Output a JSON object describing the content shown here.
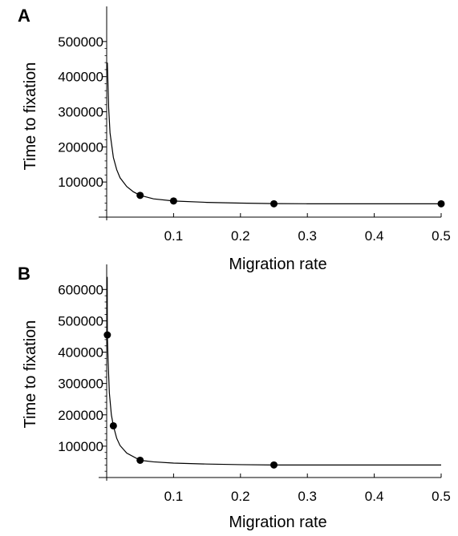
{
  "chart_data": [
    {
      "panel": "A",
      "type": "line",
      "xlabel": "Migration rate",
      "ylabel": "Time to fixation",
      "xlim": [
        0,
        0.5
      ],
      "ylim": [
        0,
        600000
      ],
      "xticks": [
        0.1,
        0.2,
        0.3,
        0.4,
        0.5
      ],
      "xtick_labels": [
        "0.1",
        "0.2",
        "0.3",
        "0.4",
        "0.5"
      ],
      "yticks": [
        100000,
        200000,
        300000,
        400000,
        500000
      ],
      "ytick_labels": [
        "100000",
        "200000",
        "300000",
        "400000",
        "500000"
      ],
      "grid": false,
      "points": {
        "x": [
          0.05,
          0.1,
          0.25,
          0.5
        ],
        "y": [
          62000,
          46000,
          38000,
          38000
        ]
      },
      "curve": {
        "x": [
          0.001,
          0.003,
          0.005,
          0.01,
          0.015,
          0.02,
          0.03,
          0.04,
          0.05,
          0.07,
          0.1,
          0.15,
          0.2,
          0.25,
          0.3,
          0.4,
          0.5
        ],
        "y": [
          440000,
          310000,
          240000,
          170000,
          135000,
          112000,
          87000,
          72000,
          62000,
          52000,
          46000,
          42000,
          40000,
          38500,
          38000,
          38000,
          38000
        ]
      }
    },
    {
      "panel": "B",
      "type": "line",
      "xlabel": "Migration rate",
      "ylabel": "Time to fixation",
      "xlim": [
        0,
        0.5
      ],
      "ylim": [
        0,
        680000
      ],
      "xticks": [
        0.1,
        0.2,
        0.3,
        0.4,
        0.5
      ],
      "xtick_labels": [
        "0.1",
        "0.2",
        "0.3",
        "0.4",
        "0.5"
      ],
      "yticks": [
        100000,
        200000,
        300000,
        400000,
        500000,
        600000
      ],
      "ytick_labels": [
        "100000",
        "200000",
        "300000",
        "400000",
        "500000",
        "600000"
      ],
      "grid": false,
      "points": {
        "x": [
          0.001,
          0.01,
          0.05,
          0.25
        ],
        "y": [
          455000,
          165000,
          55000,
          40000
        ]
      },
      "curve": {
        "x": [
          0.0008,
          0.001,
          0.002,
          0.004,
          0.007,
          0.01,
          0.015,
          0.02,
          0.03,
          0.05,
          0.07,
          0.1,
          0.15,
          0.2,
          0.25,
          0.3,
          0.4,
          0.5
        ],
        "y": [
          640000,
          455000,
          380000,
          270000,
          200000,
          165000,
          125000,
          102000,
          78000,
          55000,
          50000,
          46000,
          43000,
          41000,
          40000,
          40000,
          40000,
          40000
        ]
      }
    }
  ]
}
